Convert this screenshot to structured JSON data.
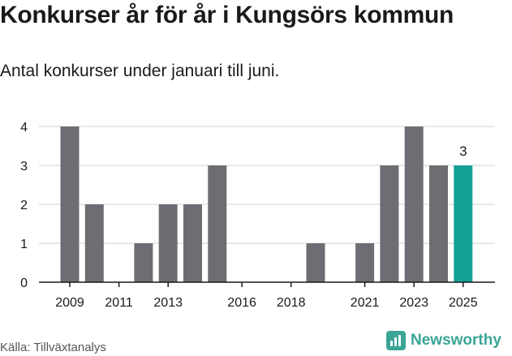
{
  "header": {
    "title": "Konkurser år för år i Kungsörs kommun",
    "subtitle": "Antal konkurser under januari till juni."
  },
  "footer": {
    "source": "Källa: Tillväxtanalys",
    "brand": "Newsworthy"
  },
  "colors": {
    "bar": "#6d6d73",
    "highlight": "#13a195",
    "brand": "#3aa596",
    "grid": "#d9d9d9",
    "axis": "#1a1a1a"
  },
  "chart_data": {
    "type": "bar",
    "categories": [
      "2009",
      "2010",
      "2011",
      "2012",
      "2013",
      "2014",
      "2015",
      "2016",
      "2017",
      "2018",
      "2019",
      "2020",
      "2021",
      "2022",
      "2023",
      "2024",
      "2025"
    ],
    "values": [
      4,
      2,
      0,
      1,
      2,
      2,
      3,
      0,
      0,
      0,
      1,
      0,
      1,
      3,
      4,
      3,
      3
    ],
    "x_tick_labels": [
      "2009",
      "2011",
      "2013",
      "2016",
      "2018",
      "2021",
      "2023",
      "2025"
    ],
    "y_ticks": [
      0,
      1,
      2,
      3,
      4
    ],
    "ylim": [
      0,
      4
    ],
    "grid": true,
    "highlight": {
      "category": "2025",
      "label": "3"
    },
    "title": "Konkurser år för år i Kungsörs kommun",
    "subtitle": "Antal konkurser under januari till juni."
  }
}
